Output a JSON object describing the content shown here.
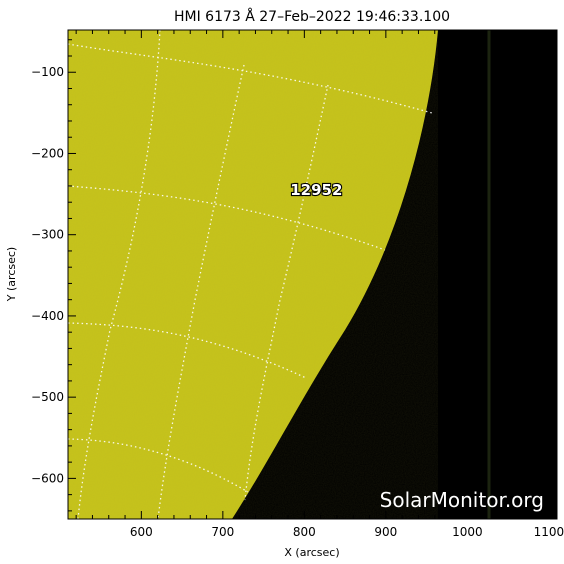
{
  "title": "HMI 6173 Å 27–Feb–2022 19:46:33.100",
  "x_axis": {
    "label": "X (arcsec)",
    "range": [
      510,
      1110
    ],
    "ticks": [
      600,
      700,
      800,
      900,
      1000,
      1100
    ]
  },
  "y_axis": {
    "label": "Y (arcsec)",
    "range": [
      -650,
      -48
    ],
    "ticks": [
      -100,
      -200,
      -300,
      -400,
      -500,
      -600
    ]
  },
  "active_region": {
    "number": "12952",
    "x": 800,
    "y": -245
  },
  "watermark": "SolarMonitor.org",
  "colors": {
    "disk": "#c7c41a",
    "background": "#000000",
    "grid": "#ffffff"
  }
}
